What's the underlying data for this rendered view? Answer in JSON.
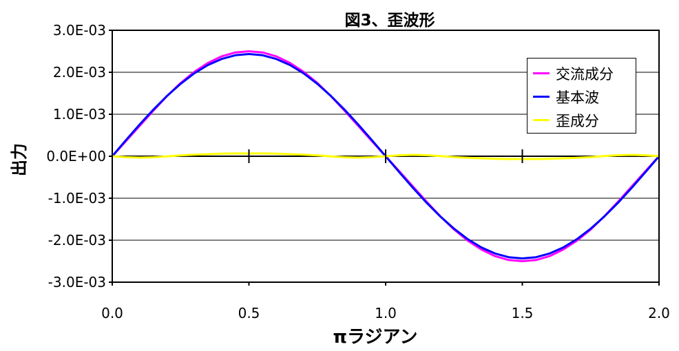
{
  "chart_data": {
    "type": "line",
    "title": "図3、歪波形",
    "xlabel": "πラジアン",
    "ylabel": "出力",
    "xlim": [
      0,
      2
    ],
    "ylim": [
      -0.003,
      0.003
    ],
    "x_ticks": [
      "0.0",
      "0.5",
      "1.0",
      "1.5",
      "2.0"
    ],
    "y_ticks": [
      "3.0E-03",
      "2.0E-03",
      "1.0E-03",
      "0.0E+00",
      "-1.0E-03",
      "-2.0E-03",
      "-3.0E-03"
    ],
    "grid": "horizontal",
    "legend_position": "top-right",
    "x": [
      0,
      0.05,
      0.1,
      0.15,
      0.2,
      0.25,
      0.3,
      0.35,
      0.4,
      0.45,
      0.5,
      0.55,
      0.6,
      0.65,
      0.7,
      0.75,
      0.8,
      0.85,
      0.9,
      0.95,
      1.0,
      1.05,
      1.1,
      1.15,
      1.2,
      1.25,
      1.3,
      1.35,
      1.4,
      1.45,
      1.5,
      1.55,
      1.6,
      1.65,
      1.7,
      1.75,
      1.8,
      1.85,
      1.9,
      1.95,
      2.0
    ],
    "series": [
      {
        "name": "交流成分",
        "color": "#ff00ff",
        "values": [
          0,
          0.000359,
          0.000721,
          0.001083,
          0.001431,
          0.001745,
          0.00201,
          0.002221,
          0.002378,
          0.002472,
          0.0025,
          0.002472,
          0.002378,
          0.002221,
          0.00201,
          0.001745,
          0.001431,
          0.001083,
          0.000721,
          0.000359,
          0,
          -0.000359,
          -0.000721,
          -0.001083,
          -0.001431,
          -0.001745,
          -0.00201,
          -0.002221,
          -0.002378,
          -0.002472,
          -0.0025,
          -0.002472,
          -0.002378,
          -0.002221,
          -0.00201,
          -0.001745,
          -0.001431,
          -0.001083,
          -0.000721,
          -0.000359,
          0
        ]
      },
      {
        "name": "基本波",
        "color": "#0000ff",
        "values": [
          0,
          0.000382,
          0.000754,
          0.001108,
          0.001434,
          0.001725,
          0.001973,
          0.002172,
          0.002317,
          0.002405,
          0.002435,
          0.002405,
          0.002317,
          0.002172,
          0.001973,
          0.001725,
          0.001434,
          0.001108,
          0.000754,
          0.000382,
          0,
          -0.000382,
          -0.000754,
          -0.001108,
          -0.001434,
          -0.001725,
          -0.001973,
          -0.002172,
          -0.002317,
          -0.002405,
          -0.002435,
          -0.002405,
          -0.002317,
          -0.002172,
          -0.001973,
          -0.001725,
          -0.001434,
          -0.001108,
          -0.000754,
          -0.000382,
          0
        ]
      },
      {
        "name": "歪成分",
        "color": "#ffff00",
        "values": [
          0,
          -2.3e-05,
          -3.3e-05,
          -2.5e-05,
          -3e-06,
          2e-05,
          3.7e-05,
          4.9e-05,
          6.1e-05,
          6.7e-05,
          6.5e-05,
          6.7e-05,
          6.1e-05,
          4.9e-05,
          3.7e-05,
          2e-05,
          -3e-06,
          -2.5e-05,
          -3.3e-05,
          -2.3e-05,
          0,
          2.3e-05,
          3.3e-05,
          2.5e-05,
          3e-06,
          -2e-05,
          -3.7e-05,
          -4.9e-05,
          -6.1e-05,
          -6.7e-05,
          -6.5e-05,
          -6.7e-05,
          -6.1e-05,
          -4.9e-05,
          -3.7e-05,
          -2e-05,
          3e-06,
          2.5e-05,
          3.3e-05,
          2.3e-05,
          0
        ]
      }
    ]
  }
}
